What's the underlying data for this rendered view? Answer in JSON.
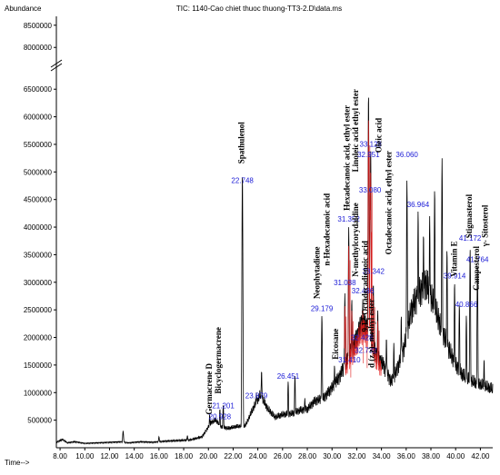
{
  "header": {
    "abundance_label": "Abundance",
    "tic_title": "TIC: 1140-Cao chiet thuoc thuong-TT3-2.D\\data.ms",
    "time_label": "Time-->"
  },
  "colors": {
    "trace": "#000000",
    "red_trace": "#e01818",
    "rt_label": "#1a1ad6",
    "axis": "#000000"
  },
  "chart_data": {
    "type": "line",
    "title": "TIC: 1140-Cao chiet thuoc thuong-TT3-2.D\\data.ms",
    "xlabel": "Time-->",
    "ylabel": "Abundance",
    "xlim": [
      7.7,
      43.0
    ],
    "ylim": [
      0,
      8700000
    ],
    "y_break": [
      6800000,
      7800000
    ],
    "x_ticks": [
      "8.00",
      "10.00",
      "12.00",
      "14.00",
      "16.00",
      "18.00",
      "20.00",
      "22.00",
      "24.00",
      "26.00",
      "28.00",
      "30.00",
      "32.00",
      "34.00",
      "36.00",
      "38.00",
      "40.00",
      "42.00"
    ],
    "y_ticks": [
      "500000",
      "1000000",
      "1500000",
      "2000000",
      "2500000",
      "3000000",
      "3500000",
      "4000000",
      "4500000",
      "5000000",
      "5500000",
      "6000000",
      "6500000",
      "8000000",
      "8500000"
    ],
    "tick_values_x": [
      8,
      10,
      12,
      14,
      16,
      18,
      20,
      22,
      24,
      26,
      28,
      30,
      32,
      34,
      36,
      38,
      40,
      42
    ],
    "tick_values_y": [
      500000,
      1000000,
      1500000,
      2000000,
      2500000,
      3000000,
      3500000,
      4000000,
      4500000,
      5000000,
      5500000,
      6000000,
      6500000,
      8000000,
      8500000
    ],
    "baseline": [
      [
        7.7,
        100000
      ],
      [
        8.2,
        150000
      ],
      [
        8.6,
        90000
      ],
      [
        9.2,
        110000
      ],
      [
        10.0,
        80000
      ],
      [
        11.0,
        90000
      ],
      [
        12.0,
        100000
      ],
      [
        13.0,
        110000
      ],
      [
        13.5,
        90000
      ],
      [
        14.5,
        110000
      ],
      [
        15.5,
        100000
      ],
      [
        16.5,
        120000
      ],
      [
        17.5,
        130000
      ],
      [
        18.5,
        140000
      ],
      [
        19.5,
        200000
      ],
      [
        20.2,
        450000
      ],
      [
        20.6,
        500000
      ],
      [
        21.0,
        380000
      ],
      [
        21.6,
        350000
      ],
      [
        22.2,
        380000
      ],
      [
        23.0,
        400000
      ],
      [
        23.6,
        700000
      ],
      [
        24.2,
        950000
      ],
      [
        24.8,
        700000
      ],
      [
        25.4,
        550000
      ],
      [
        26.0,
        600000
      ],
      [
        26.8,
        620000
      ],
      [
        27.4,
        680000
      ],
      [
        28.0,
        700000
      ],
      [
        28.6,
        850000
      ],
      [
        29.3,
        900000
      ],
      [
        30.0,
        1100000
      ],
      [
        30.6,
        1300000
      ],
      [
        31.2,
        1600000
      ],
      [
        31.8,
        1900000
      ],
      [
        32.4,
        2300000
      ],
      [
        33.0,
        2200000
      ],
      [
        33.6,
        1700000
      ],
      [
        34.2,
        1500000
      ],
      [
        34.8,
        1200000
      ],
      [
        35.2,
        1400000
      ],
      [
        35.8,
        1800000
      ],
      [
        36.4,
        2500000
      ],
      [
        37.0,
        2800000
      ],
      [
        37.6,
        3000000
      ],
      [
        38.2,
        2600000
      ],
      [
        38.8,
        2200000
      ],
      [
        39.4,
        1800000
      ],
      [
        40.0,
        1500000
      ],
      [
        40.6,
        1300000
      ],
      [
        41.2,
        1200000
      ],
      [
        41.8,
        1150000
      ],
      [
        42.4,
        1100000
      ],
      [
        43.0,
        1050000
      ]
    ],
    "peaks": [
      {
        "rt": 13.1,
        "height": 300000
      },
      {
        "rt": 16.0,
        "height": 200000
      },
      {
        "rt": 18.3,
        "height": 220000
      },
      {
        "rt": 20.1,
        "height": 600000
      },
      {
        "rt": 20.928,
        "height": 700000
      },
      {
        "rt": 21.201,
        "height": 780000
      },
      {
        "rt": 22.748,
        "height": 4950000
      },
      {
        "rt": 23.879,
        "height": 1000000
      },
      {
        "rt": 24.3,
        "height": 1400000
      },
      {
        "rt": 26.451,
        "height": 1200000
      },
      {
        "rt": 27.0,
        "height": 1300000
      },
      {
        "rt": 27.8,
        "height": 900000
      },
      {
        "rt": 29.179,
        "height": 2400000
      },
      {
        "rt": 30.2,
        "height": 1500000
      },
      {
        "rt": 31.038,
        "height": 2800000
      },
      {
        "rt": 31.352,
        "height": 4000000
      },
      {
        "rt": 31.41,
        "height": 1500000
      },
      {
        "rt": 31.6,
        "height": 2700000
      },
      {
        "rt": 32.428,
        "height": 1800000
      },
      {
        "rt": 32.486,
        "height": 2700000
      },
      {
        "rt": 32.732,
        "height": 1700000
      },
      {
        "rt": 32.951,
        "height": 6450000
      },
      {
        "rt": 33.08,
        "height": 4600000
      },
      {
        "rt": 33.128,
        "height": 5450000
      },
      {
        "rt": 33.342,
        "height": 3000000
      },
      {
        "rt": 33.7,
        "height": 2500000
      },
      {
        "rt": 34.4,
        "height": 2000000
      },
      {
        "rt": 35.0,
        "height": 1900000
      },
      {
        "rt": 35.6,
        "height": 2400000
      },
      {
        "rt": 36.06,
        "height": 4850000
      },
      {
        "rt": 36.964,
        "height": 4300000
      },
      {
        "rt": 37.4,
        "height": 3900000
      },
      {
        "rt": 37.9,
        "height": 4200000
      },
      {
        "rt": 38.3,
        "height": 4700000
      },
      {
        "rt": 38.9,
        "height": 5250000
      },
      {
        "rt": 39.3,
        "height": 3600000
      },
      {
        "rt": 39.914,
        "height": 3000000
      },
      {
        "rt": 40.3,
        "height": 2600000
      },
      {
        "rt": 40.866,
        "height": 2400000
      },
      {
        "rt": 41.172,
        "height": 3600000
      },
      {
        "rt": 41.764,
        "height": 3300000
      },
      {
        "rt": 42.3,
        "height": 1600000
      }
    ],
    "red_region": [
      31.0,
      34.0
    ],
    "rt_labels": [
      {
        "rt": 22.748,
        "text": "22.748",
        "y": 4800000
      },
      {
        "rt": 20.928,
        "text": "20.928",
        "y": 520000
      },
      {
        "rt": 21.201,
        "text": "21.201",
        "y": 720000
      },
      {
        "rt": 23.879,
        "text": "23.879",
        "y": 900000
      },
      {
        "rt": 26.451,
        "text": "26.451",
        "y": 1250000
      },
      {
        "rt": 29.179,
        "text": "29.179",
        "y": 2480000
      },
      {
        "rt": 31.038,
        "text": "31.038",
        "y": 2950000
      },
      {
        "rt": 31.352,
        "text": "31.352",
        "y": 4100000
      },
      {
        "rt": 31.41,
        "text": "31.410",
        "y": 1550000
      },
      {
        "rt": 32.428,
        "text": "32.428",
        "y": 1950000
      },
      {
        "rt": 32.486,
        "text": "32.486",
        "y": 2800000
      },
      {
        "rt": 32.732,
        "text": "32.732",
        "y": 1720000
      },
      {
        "rt": 32.951,
        "text": "32.951",
        "y": 5270000
      },
      {
        "rt": 33.128,
        "text": "33.128",
        "y": 5460000
      },
      {
        "rt": 33.08,
        "text": "33.080",
        "y": 4630000
      },
      {
        "rt": 33.342,
        "text": "33.342",
        "y": 3150000
      },
      {
        "rt": 36.06,
        "text": "36.060",
        "y": 5270000
      },
      {
        "rt": 36.964,
        "text": "36.964",
        "y": 4360000
      },
      {
        "rt": 39.914,
        "text": "39.914",
        "y": 3070000
      },
      {
        "rt": 40.866,
        "text": "40.866",
        "y": 2550000
      },
      {
        "rt": 41.172,
        "text": "41.172",
        "y": 3750000
      },
      {
        "rt": 41.764,
        "text": "41.764",
        "y": 3370000
      }
    ],
    "compound_labels": [
      {
        "text": "Germacrene D",
        "rt": 20.3,
        "y": 600000
      },
      {
        "text": "Bicyclogermacrene",
        "rt": 21.0,
        "y": 980000
      },
      {
        "text": "Spathulenol",
        "rt": 22.9,
        "y": 5150000
      },
      {
        "text": "Neophytadiene",
        "rt": 29.0,
        "y": 2700000
      },
      {
        "text": "n-Hexadecanoic acid",
        "rt": 29.8,
        "y": 3300000
      },
      {
        "text": "Eicosane",
        "rt": 30.5,
        "y": 1600000
      },
      {
        "text": "Hexadecanoic acid, ethyl ester",
        "rt": 31.4,
        "y": 4300000
      },
      {
        "text": "Linoleic acid ethyl ester",
        "rt": 32.1,
        "y": 5000000
      },
      {
        "text": "N-methylcorydaldine",
        "rt": 32.1,
        "y": 3100000
      },
      {
        "text": "9,12-Octadecadienoic acid",
        "rt": 32.9,
        "y": 2100000
      },
      {
        "text": "d (z,z)- methyl ester",
        "rt": 33.4,
        "y": 1450000
      },
      {
        "text": "Oleic acid",
        "rt": 34.0,
        "y": 5350000
      },
      {
        "text": "Octadecanoic acid, ethyl ester",
        "rt": 34.8,
        "y": 3500000
      },
      {
        "text": "Vitamin E",
        "rt": 40.1,
        "y": 3100000
      },
      {
        "text": "Stigmasterol",
        "rt": 41.3,
        "y": 3800000
      },
      {
        "text": "Campesterol",
        "rt": 41.9,
        "y": 2850000
      },
      {
        "text": "γ- Sitosterol",
        "rt": 42.6,
        "y": 3650000
      }
    ]
  }
}
